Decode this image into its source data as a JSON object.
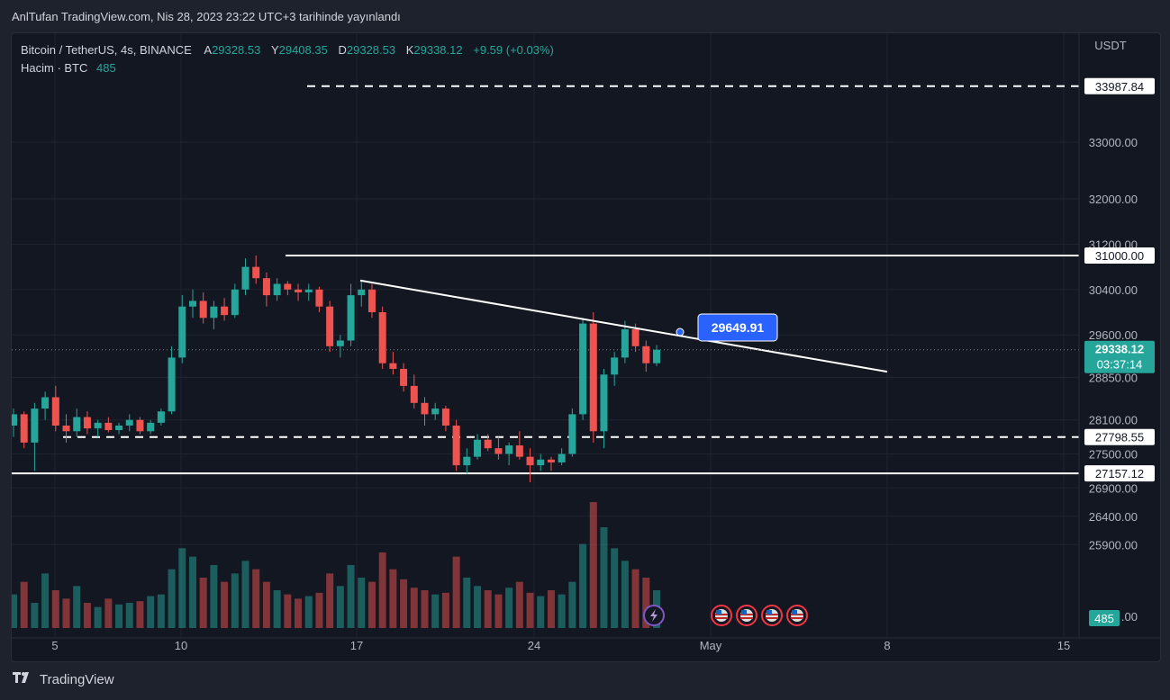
{
  "header": {
    "published": "AnlTufan TradingView.com, Nis 28, 2023 23:22 UTC+3 tarihinde yayınlandı"
  },
  "legend": {
    "symbol": "Bitcoin / TetherUS, 4s, BINANCE",
    "open_label": "A",
    "open": "29328.53",
    "high_label": "Y",
    "high": "29408.35",
    "low_label": "D",
    "low": "29328.53",
    "close_label": "K",
    "close": "29338.12",
    "change": "+9.59 (+0.03%)",
    "volume_label": "Hacim · BTC",
    "volume": "485"
  },
  "footer": {
    "brand": "TradingView"
  },
  "colors": {
    "up": "#26a69a",
    "down": "#ef5350",
    "background": "#131722",
    "grid": "#1f2330",
    "accent": "#2962ff"
  },
  "chart_data": {
    "type": "candlestick",
    "currency": "USDT",
    "y_axis_ticks": [
      "33000.00",
      "32000.00",
      "31200.00",
      "30400.00",
      "29600.00",
      "28850.00",
      "28100.00",
      "27500.00",
      "26900.00",
      "26400.00",
      "25900.00"
    ],
    "x_axis_ticks": [
      "5",
      "10",
      "17",
      "24",
      "May",
      "8",
      "15"
    ],
    "last_price": "29338.12",
    "countdown": "03:37:14",
    "volume_badge": "485",
    "levels": [
      {
        "value": "33987.84",
        "style": "dashed"
      },
      {
        "value": "31000.00",
        "style": "solid"
      },
      {
        "value": "27798.55",
        "style": "dashed"
      },
      {
        "value": "27157.12",
        "style": "solid"
      }
    ],
    "trendline": {
      "label": "29649.91",
      "from": {
        "date": "Apr 18",
        "price": 30560
      },
      "to": {
        "date": "May 8",
        "price": 28950
      }
    },
    "candles": [
      {
        "o": 28000,
        "h": 28300,
        "l": 27800,
        "c": 28200
      },
      {
        "o": 28200,
        "h": 28250,
        "l": 27600,
        "c": 27700
      },
      {
        "o": 27700,
        "h": 28400,
        "l": 27200,
        "c": 28300
      },
      {
        "o": 28300,
        "h": 28600,
        "l": 28100,
        "c": 28500
      },
      {
        "o": 28500,
        "h": 28700,
        "l": 27900,
        "c": 28000
      },
      {
        "o": 28000,
        "h": 28200,
        "l": 27700,
        "c": 27900
      },
      {
        "o": 27900,
        "h": 28300,
        "l": 27800,
        "c": 28150
      },
      {
        "o": 28150,
        "h": 28250,
        "l": 27850,
        "c": 27950
      },
      {
        "o": 27950,
        "h": 28100,
        "l": 27800,
        "c": 28050
      },
      {
        "o": 28050,
        "h": 28150,
        "l": 27880,
        "c": 27920
      },
      {
        "o": 27920,
        "h": 28050,
        "l": 27850,
        "c": 28000
      },
      {
        "o": 28000,
        "h": 28200,
        "l": 27900,
        "c": 28100
      },
      {
        "o": 28100,
        "h": 28150,
        "l": 27850,
        "c": 27900
      },
      {
        "o": 27900,
        "h": 28100,
        "l": 27850,
        "c": 28050
      },
      {
        "o": 28050,
        "h": 28300,
        "l": 28000,
        "c": 28250
      },
      {
        "o": 28250,
        "h": 29400,
        "l": 28200,
        "c": 29200
      },
      {
        "o": 29200,
        "h": 30300,
        "l": 29100,
        "c": 30100
      },
      {
        "o": 30100,
        "h": 30400,
        "l": 29900,
        "c": 30200
      },
      {
        "o": 30200,
        "h": 30350,
        "l": 29800,
        "c": 29900
      },
      {
        "o": 29900,
        "h": 30200,
        "l": 29700,
        "c": 30100
      },
      {
        "o": 30100,
        "h": 30250,
        "l": 29850,
        "c": 29950
      },
      {
        "o": 29950,
        "h": 30500,
        "l": 29900,
        "c": 30400
      },
      {
        "o": 30400,
        "h": 30950,
        "l": 30300,
        "c": 30800
      },
      {
        "o": 30800,
        "h": 31000,
        "l": 30500,
        "c": 30600
      },
      {
        "o": 30600,
        "h": 30700,
        "l": 30100,
        "c": 30300
      },
      {
        "o": 30300,
        "h": 30600,
        "l": 30200,
        "c": 30500
      },
      {
        "o": 30500,
        "h": 30550,
        "l": 30300,
        "c": 30400
      },
      {
        "o": 30400,
        "h": 30500,
        "l": 30200,
        "c": 30350
      },
      {
        "o": 30350,
        "h": 30500,
        "l": 30200,
        "c": 30400
      },
      {
        "o": 30400,
        "h": 30450,
        "l": 30000,
        "c": 30100
      },
      {
        "o": 30100,
        "h": 30200,
        "l": 29300,
        "c": 29400
      },
      {
        "o": 29400,
        "h": 29600,
        "l": 29200,
        "c": 29500
      },
      {
        "o": 29500,
        "h": 30500,
        "l": 29400,
        "c": 30300
      },
      {
        "o": 30300,
        "h": 30550,
        "l": 30100,
        "c": 30400
      },
      {
        "o": 30400,
        "h": 30500,
        "l": 29900,
        "c": 30000
      },
      {
        "o": 30000,
        "h": 30100,
        "l": 29000,
        "c": 29100
      },
      {
        "o": 29100,
        "h": 29300,
        "l": 28900,
        "c": 29000
      },
      {
        "o": 29000,
        "h": 29100,
        "l": 28600,
        "c": 28700
      },
      {
        "o": 28700,
        "h": 28900,
        "l": 28300,
        "c": 28400
      },
      {
        "o": 28400,
        "h": 28500,
        "l": 28000,
        "c": 28200
      },
      {
        "o": 28200,
        "h": 28400,
        "l": 28100,
        "c": 28300
      },
      {
        "o": 28300,
        "h": 28350,
        "l": 27900,
        "c": 28000
      },
      {
        "o": 28000,
        "h": 28100,
        "l": 27200,
        "c": 27300
      },
      {
        "o": 27300,
        "h": 27600,
        "l": 27150,
        "c": 27450
      },
      {
        "o": 27450,
        "h": 27850,
        "l": 27400,
        "c": 27750
      },
      {
        "o": 27750,
        "h": 27850,
        "l": 27550,
        "c": 27600
      },
      {
        "o": 27600,
        "h": 27800,
        "l": 27400,
        "c": 27500
      },
      {
        "o": 27500,
        "h": 27700,
        "l": 27300,
        "c": 27650
      },
      {
        "o": 27650,
        "h": 27900,
        "l": 27400,
        "c": 27450
      },
      {
        "o": 27450,
        "h": 27600,
        "l": 27000,
        "c": 27300
      },
      {
        "o": 27300,
        "h": 27500,
        "l": 27200,
        "c": 27400
      },
      {
        "o": 27400,
        "h": 27450,
        "l": 27200,
        "c": 27350
      },
      {
        "o": 27350,
        "h": 27600,
        "l": 27300,
        "c": 27500
      },
      {
        "o": 27500,
        "h": 28300,
        "l": 27450,
        "c": 28200
      },
      {
        "o": 28200,
        "h": 29900,
        "l": 28100,
        "c": 29800
      },
      {
        "o": 29800,
        "h": 30000,
        "l": 27700,
        "c": 27900
      },
      {
        "o": 27900,
        "h": 29000,
        "l": 27600,
        "c": 28900
      },
      {
        "o": 28900,
        "h": 29300,
        "l": 28700,
        "c": 29200
      },
      {
        "o": 29200,
        "h": 29850,
        "l": 29100,
        "c": 29700
      },
      {
        "o": 29700,
        "h": 29800,
        "l": 29300,
        "c": 29400
      },
      {
        "o": 29400,
        "h": 29500,
        "l": 28950,
        "c": 29100
      },
      {
        "o": 29100,
        "h": 29420,
        "l": 29050,
        "c": 29338
      }
    ],
    "volumes": [
      40,
      55,
      30,
      65,
      45,
      35,
      50,
      30,
      25,
      35,
      28,
      30,
      32,
      38,
      40,
      70,
      95,
      85,
      60,
      75,
      55,
      65,
      80,
      70,
      55,
      45,
      40,
      35,
      38,
      42,
      65,
      50,
      75,
      60,
      55,
      90,
      70,
      58,
      48,
      45,
      40,
      42,
      85,
      60,
      50,
      45,
      40,
      48,
      55,
      42,
      38,
      45,
      40,
      55,
      100,
      150,
      120,
      95,
      80,
      70,
      60,
      45
    ]
  }
}
